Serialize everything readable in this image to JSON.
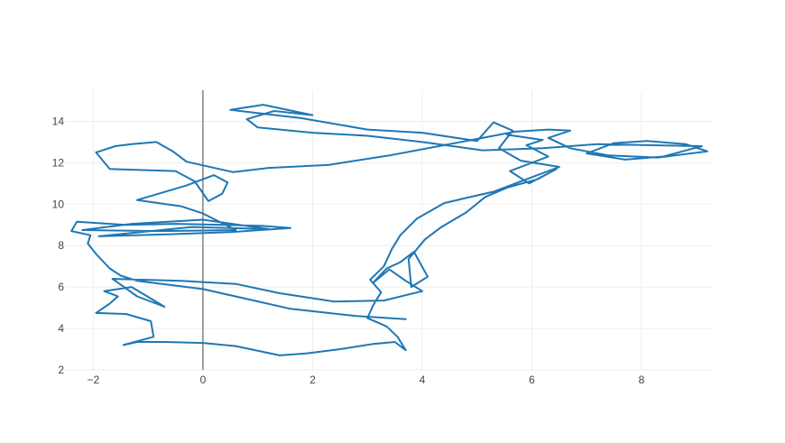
{
  "chart_data": {
    "type": "line",
    "title": "",
    "xlabel": "",
    "ylabel": "",
    "xlim": [
      -2.5,
      9.3
    ],
    "ylim": [
      2,
      15.5
    ],
    "xticks": [
      -2,
      0,
      2,
      4,
      6,
      8
    ],
    "yticks": [
      2,
      4,
      6,
      8,
      10,
      12,
      14
    ],
    "xtick_labels": [
      "−2",
      "0",
      "2",
      "4",
      "6",
      "8"
    ],
    "ytick_labels": [
      "2",
      "4",
      "6",
      "8",
      "10",
      "12",
      "14"
    ],
    "grid": true,
    "zero_line_x": true,
    "legend": "none",
    "colors": {
      "trace": "#1f77b4",
      "grid": "#eeeeee",
      "zeroline": "#444444",
      "text": "#444444"
    },
    "series": [
      {
        "points": [
          [
            3.7,
            4.45
          ],
          [
            2.8,
            4.6
          ],
          [
            1.6,
            4.95
          ],
          [
            0.0,
            5.9
          ],
          [
            -1.2,
            6.3
          ],
          [
            -1.5,
            6.55
          ],
          [
            -1.7,
            6.9
          ],
          [
            -1.95,
            7.6
          ],
          [
            -2.1,
            8.1
          ],
          [
            -2.05,
            8.5
          ],
          [
            -2.4,
            8.7
          ],
          [
            -2.3,
            9.15
          ],
          [
            -1.4,
            9.0
          ],
          [
            -0.5,
            9.05
          ],
          [
            0.4,
            9.0
          ],
          [
            1.1,
            8.95
          ],
          [
            1.6,
            8.85
          ],
          [
            0.5,
            8.65
          ],
          [
            -0.6,
            8.55
          ],
          [
            -1.9,
            8.45
          ],
          [
            -0.2,
            8.9
          ],
          [
            1.2,
            8.8
          ],
          [
            0.0,
            9.25
          ],
          [
            -1.3,
            9.05
          ],
          [
            -2.2,
            8.75
          ],
          [
            -0.8,
            8.7
          ],
          [
            0.6,
            8.75
          ],
          [
            0.0,
            9.55
          ],
          [
            -0.4,
            9.9
          ],
          [
            -1.2,
            10.2
          ],
          [
            -0.3,
            10.9
          ],
          [
            0.2,
            11.4
          ],
          [
            0.45,
            11.05
          ],
          [
            0.35,
            10.5
          ],
          [
            0.1,
            10.15
          ],
          [
            -0.15,
            11.1
          ],
          [
            -0.5,
            11.6
          ],
          [
            -1.7,
            11.7
          ],
          [
            -1.95,
            12.5
          ],
          [
            -1.6,
            12.8
          ],
          [
            -1.3,
            12.9
          ],
          [
            -0.85,
            13.0
          ],
          [
            -0.55,
            12.55
          ],
          [
            -0.3,
            12.05
          ],
          [
            0.55,
            11.55
          ],
          [
            1.2,
            11.75
          ],
          [
            2.3,
            11.9
          ],
          [
            3.4,
            12.35
          ],
          [
            4.3,
            12.8
          ],
          [
            5.0,
            13.15
          ],
          [
            5.7,
            13.5
          ],
          [
            6.3,
            13.6
          ],
          [
            6.7,
            13.55
          ],
          [
            6.3,
            13.2
          ],
          [
            6.7,
            12.7
          ],
          [
            7.4,
            12.35
          ],
          [
            8.3,
            12.25
          ],
          [
            9.2,
            12.55
          ],
          [
            8.8,
            12.9
          ],
          [
            8.1,
            13.05
          ],
          [
            7.5,
            12.95
          ],
          [
            7.0,
            12.45
          ],
          [
            7.7,
            12.15
          ],
          [
            8.4,
            12.3
          ],
          [
            9.1,
            12.8
          ],
          [
            7.2,
            12.9
          ],
          [
            6.2,
            12.7
          ],
          [
            5.1,
            12.6
          ],
          [
            4.0,
            13.0
          ],
          [
            3.0,
            13.3
          ],
          [
            2.0,
            13.45
          ],
          [
            1.0,
            13.7
          ],
          [
            0.8,
            14.1
          ],
          [
            1.3,
            14.5
          ],
          [
            2.0,
            14.3
          ],
          [
            1.1,
            14.8
          ],
          [
            0.5,
            14.55
          ],
          [
            1.8,
            14.15
          ],
          [
            3.0,
            13.6
          ],
          [
            4.0,
            13.45
          ],
          [
            5.0,
            13.05
          ],
          [
            5.3,
            13.95
          ],
          [
            5.65,
            13.55
          ],
          [
            5.4,
            12.7
          ],
          [
            5.8,
            12.1
          ],
          [
            6.5,
            11.8
          ],
          [
            5.9,
            11.2
          ],
          [
            5.3,
            10.6
          ],
          [
            4.8,
            10.3
          ],
          [
            4.4,
            10.05
          ],
          [
            3.9,
            9.3
          ],
          [
            3.6,
            8.5
          ],
          [
            3.45,
            7.85
          ],
          [
            3.3,
            7.0
          ],
          [
            3.05,
            6.35
          ],
          [
            3.25,
            5.75
          ],
          [
            3.1,
            5.1
          ],
          [
            3.0,
            4.5
          ],
          [
            3.35,
            4.1
          ],
          [
            3.55,
            3.6
          ],
          [
            3.7,
            2.95
          ],
          [
            3.5,
            3.35
          ],
          [
            3.1,
            3.25
          ],
          [
            2.5,
            3.0
          ],
          [
            1.9,
            2.8
          ],
          [
            1.4,
            2.7
          ],
          [
            0.6,
            3.15
          ],
          [
            0.0,
            3.3
          ],
          [
            -0.7,
            3.35
          ],
          [
            -1.2,
            3.35
          ],
          [
            -1.45,
            3.2
          ],
          [
            -0.9,
            3.6
          ],
          [
            -0.95,
            4.35
          ],
          [
            -1.4,
            4.7
          ],
          [
            -1.95,
            4.75
          ],
          [
            -1.7,
            5.2
          ],
          [
            -1.55,
            5.55
          ],
          [
            -1.8,
            5.8
          ],
          [
            -1.3,
            6.0
          ],
          [
            -0.7,
            5.05
          ],
          [
            -1.2,
            5.55
          ],
          [
            -1.65,
            6.4
          ],
          [
            -0.4,
            6.3
          ],
          [
            0.6,
            6.15
          ],
          [
            1.4,
            5.7
          ],
          [
            2.4,
            5.3
          ],
          [
            3.3,
            5.35
          ],
          [
            4.0,
            5.8
          ],
          [
            3.7,
            6.3
          ],
          [
            3.4,
            6.85
          ],
          [
            3.1,
            6.2
          ],
          [
            3.35,
            6.9
          ],
          [
            3.6,
            7.2
          ],
          [
            3.85,
            7.7
          ],
          [
            4.1,
            6.5
          ],
          [
            3.8,
            6.0
          ],
          [
            3.75,
            7.35
          ],
          [
            4.05,
            8.3
          ],
          [
            4.35,
            8.9
          ],
          [
            4.8,
            9.6
          ],
          [
            5.15,
            10.35
          ],
          [
            5.55,
            10.8
          ],
          [
            6.1,
            11.2
          ],
          [
            6.45,
            11.7
          ],
          [
            5.95,
            11.0
          ],
          [
            5.6,
            11.6
          ],
          [
            6.3,
            12.3
          ],
          [
            5.9,
            12.85
          ],
          [
            6.2,
            13.1
          ],
          [
            5.55,
            13.35
          ]
        ]
      }
    ]
  }
}
